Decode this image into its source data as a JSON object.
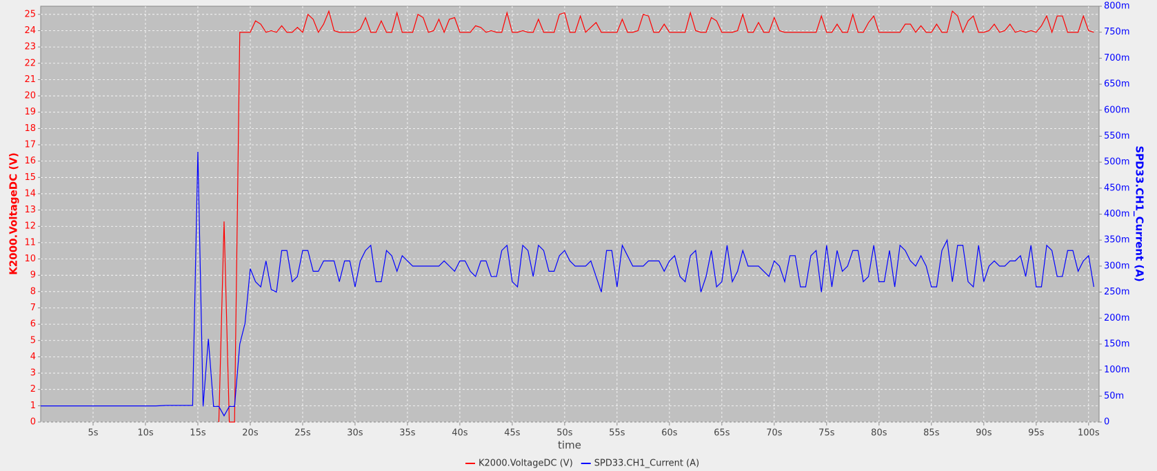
{
  "chart_data": {
    "type": "line",
    "xlabel": "time",
    "ylabel": "K2000.VoltageDC (V)",
    "y2label": "SPD33.CH1_Current (A)",
    "grid": true,
    "legend": "bottom",
    "xlim": [
      0,
      101
    ],
    "ylim": [
      0,
      25.5
    ],
    "y2lim": [
      0,
      0.8
    ],
    "xticks": [
      {
        "value": 5,
        "label": "5s"
      },
      {
        "value": 10,
        "label": "10s"
      },
      {
        "value": 15,
        "label": "15s"
      },
      {
        "value": 20,
        "label": "20s"
      },
      {
        "value": 25,
        "label": "25s"
      },
      {
        "value": 30,
        "label": "30s"
      },
      {
        "value": 35,
        "label": "35s"
      },
      {
        "value": 40,
        "label": "40s"
      },
      {
        "value": 45,
        "label": "45s"
      },
      {
        "value": 50,
        "label": "50s"
      },
      {
        "value": 55,
        "label": "55s"
      },
      {
        "value": 60,
        "label": "60s"
      },
      {
        "value": 65,
        "label": "65s"
      },
      {
        "value": 70,
        "label": "70s"
      },
      {
        "value": 75,
        "label": "75s"
      },
      {
        "value": 80,
        "label": "80s"
      },
      {
        "value": 85,
        "label": "85s"
      },
      {
        "value": 90,
        "label": "90s"
      },
      {
        "value": 95,
        "label": "95s"
      },
      {
        "value": 100,
        "label": "100s"
      }
    ],
    "yticks": [
      0,
      1,
      2,
      3,
      4,
      5,
      6,
      7,
      8,
      9,
      10,
      11,
      12,
      13,
      14,
      15,
      16,
      17,
      18,
      19,
      20,
      21,
      22,
      23,
      24,
      25
    ],
    "y2ticks": [
      0,
      {
        "value": 0.05,
        "label": "50m"
      },
      {
        "value": 0.1,
        "label": "100m"
      },
      {
        "value": 0.15,
        "label": "150m"
      },
      {
        "value": 0.2,
        "label": "200m"
      },
      {
        "value": 0.25,
        "label": "250m"
      },
      {
        "value": 0.3,
        "label": "300m"
      },
      {
        "value": 0.35,
        "label": "350m"
      },
      {
        "value": 0.4,
        "label": "400m"
      },
      {
        "value": 0.45,
        "label": "450m"
      },
      {
        "value": 0.5,
        "label": "500m"
      },
      {
        "value": 0.55,
        "label": "550m"
      },
      {
        "value": 0.6,
        "label": "600m"
      },
      {
        "value": 0.65,
        "label": "650m"
      },
      {
        "value": 0.7,
        "label": "700m"
      },
      {
        "value": 0.75,
        "label": "750m"
      },
      {
        "value": 0.8,
        "label": "800m"
      }
    ],
    "x": [
      0,
      1,
      2,
      3,
      4,
      5,
      6,
      7,
      8,
      9,
      10,
      11,
      12,
      13,
      14,
      14.5,
      15,
      15.5,
      16,
      16.5,
      17,
      17.5,
      18,
      18.5,
      19,
      19.5,
      20,
      20.5,
      21,
      21.5,
      22,
      22.5,
      23,
      23.5,
      24,
      24.5,
      25,
      25.5,
      26,
      26.5,
      27,
      27.5,
      28,
      28.5,
      29,
      29.5,
      30,
      30.5,
      31,
      31.5,
      32,
      32.5,
      33,
      33.5,
      34,
      34.5,
      35,
      35.5,
      36,
      36.5,
      37,
      37.5,
      38,
      38.5,
      39,
      39.5,
      40,
      40.5,
      41,
      41.5,
      42,
      42.5,
      43,
      43.5,
      44,
      44.5,
      45,
      45.5,
      46,
      46.5,
      47,
      47.5,
      48,
      48.5,
      49,
      49.5,
      50,
      50.5,
      51,
      51.5,
      52,
      52.5,
      53,
      53.5,
      54,
      54.5,
      55,
      55.5,
      56,
      56.5,
      57,
      57.5,
      58,
      58.5,
      59,
      59.5,
      60,
      60.5,
      61,
      61.5,
      62,
      62.5,
      63,
      63.5,
      64,
      64.5,
      65,
      65.5,
      66,
      66.5,
      67,
      67.5,
      68,
      68.5,
      69,
      69.5,
      70,
      70.5,
      71,
      71.5,
      72,
      72.5,
      73,
      73.5,
      74,
      74.5,
      75,
      75.5,
      76,
      76.5,
      77,
      77.5,
      78,
      78.5,
      79,
      79.5,
      80,
      80.5,
      81,
      81.5,
      82,
      82.5,
      83,
      83.5,
      84,
      84.5,
      85,
      85.5,
      86,
      86.5,
      87,
      87.5,
      88,
      88.5,
      89,
      89.5,
      90,
      90.5,
      91,
      91.5,
      92,
      92.5,
      93,
      93.5,
      94,
      94.5,
      95,
      95.5,
      96,
      96.5,
      97,
      97.5,
      98,
      98.5,
      99,
      99.5,
      100,
      100.5
    ],
    "series": [
      {
        "name": "K2000.VoltageDC (V)",
        "color": "#ff0000",
        "values": [
          null,
          null,
          null,
          null,
          null,
          null,
          null,
          null,
          null,
          null,
          null,
          null,
          null,
          null,
          null,
          null,
          null,
          null,
          null,
          null,
          0,
          12.3,
          0,
          0,
          23.9,
          23.9,
          23.9,
          24.6,
          24.4,
          23.9,
          24.0,
          23.9,
          24.3,
          23.9,
          23.9,
          24.2,
          23.9,
          25.0,
          24.7,
          23.9,
          24.4,
          25.2,
          24.0,
          23.9,
          23.9,
          23.9,
          23.9,
          24.1,
          24.8,
          23.9,
          23.9,
          24.6,
          23.9,
          23.9,
          25.1,
          23.9,
          23.9,
          23.9,
          25.0,
          24.8,
          23.9,
          24.0,
          24.7,
          23.9,
          24.7,
          24.8,
          23.9,
          23.9,
          23.9,
          24.3,
          24.2,
          23.9,
          24.0,
          23.9,
          23.9,
          25.1,
          23.9,
          23.9,
          24.0,
          23.9,
          23.9,
          24.7,
          23.9,
          23.9,
          23.9,
          25.0,
          25.1,
          23.9,
          23.9,
          24.9,
          23.9,
          24.2,
          24.5,
          23.9,
          23.9,
          23.9,
          23.9,
          24.7,
          23.9,
          23.9,
          24.0,
          25.0,
          24.9,
          23.9,
          23.9,
          24.4,
          23.9,
          23.9,
          23.9,
          23.9,
          25.1,
          24.0,
          23.9,
          23.9,
          24.8,
          24.6,
          23.9,
          23.9,
          23.9,
          24.0,
          25.0,
          23.9,
          23.9,
          24.5,
          23.9,
          23.9,
          24.8,
          24.0,
          23.9,
          23.9,
          23.9,
          23.9,
          23.9,
          23.9,
          23.9,
          24.9,
          23.9,
          23.9,
          24.4,
          23.9,
          23.9,
          25.0,
          23.9,
          23.9,
          24.5,
          24.9,
          23.9,
          23.9,
          23.9,
          23.9,
          23.9,
          24.4,
          24.4,
          23.9,
          24.3,
          23.9,
          23.9,
          24.4,
          23.9,
          23.9,
          25.2,
          24.9,
          23.9,
          24.6,
          24.9,
          23.9,
          23.9,
          24.0,
          24.4,
          23.9,
          24.0,
          24.4,
          23.9,
          24.0,
          23.9,
          24.0,
          23.9,
          24.3,
          24.9,
          23.9,
          24.9,
          24.9,
          23.9,
          23.9,
          23.9,
          24.9,
          24.0,
          23.9
        ]
      },
      {
        "name": "SPD33.CH1_Current (A)",
        "color": "#0000ff",
        "axis": "y2",
        "values": [
          0.031,
          0.031,
          0.031,
          0.031,
          0.031,
          0.031,
          0.031,
          0.031,
          0.031,
          0.031,
          0.031,
          0.031,
          0.032,
          0.032,
          0.032,
          0.032,
          0.52,
          0.03,
          0.16,
          0.03,
          0.03,
          0.012,
          0.03,
          0.03,
          0.15,
          0.19,
          0.295,
          0.27,
          0.26,
          0.31,
          0.255,
          0.25,
          0.33,
          0.33,
          0.27,
          0.28,
          0.33,
          0.33,
          0.29,
          0.29,
          0.31,
          0.31,
          0.31,
          0.27,
          0.31,
          0.31,
          0.26,
          0.31,
          0.33,
          0.34,
          0.27,
          0.27,
          0.33,
          0.32,
          0.29,
          0.32,
          0.31,
          0.3,
          0.3,
          0.3,
          0.3,
          0.3,
          0.3,
          0.31,
          0.3,
          0.29,
          0.31,
          0.31,
          0.29,
          0.28,
          0.31,
          0.31,
          0.28,
          0.28,
          0.33,
          0.34,
          0.27,
          0.26,
          0.34,
          0.33,
          0.28,
          0.34,
          0.33,
          0.29,
          0.29,
          0.32,
          0.33,
          0.31,
          0.3,
          0.3,
          0.3,
          0.31,
          0.28,
          0.25,
          0.33,
          0.33,
          0.26,
          0.34,
          0.32,
          0.3,
          0.3,
          0.3,
          0.31,
          0.31,
          0.31,
          0.29,
          0.31,
          0.32,
          0.28,
          0.27,
          0.32,
          0.33,
          0.25,
          0.28,
          0.33,
          0.26,
          0.27,
          0.34,
          0.27,
          0.29,
          0.33,
          0.3,
          0.3,
          0.3,
          0.29,
          0.28,
          0.31,
          0.3,
          0.27,
          0.32,
          0.32,
          0.26,
          0.26,
          0.32,
          0.33,
          0.25,
          0.34,
          0.26,
          0.33,
          0.29,
          0.3,
          0.33,
          0.33,
          0.27,
          0.28,
          0.34,
          0.27,
          0.27,
          0.33,
          0.26,
          0.34,
          0.33,
          0.31,
          0.3,
          0.32,
          0.3,
          0.26,
          0.26,
          0.33,
          0.35,
          0.27,
          0.34,
          0.34,
          0.27,
          0.26,
          0.34,
          0.27,
          0.3,
          0.31,
          0.3,
          0.3,
          0.31,
          0.31,
          0.32,
          0.28,
          0.34,
          0.26,
          0.26,
          0.34,
          0.33,
          0.28,
          0.28,
          0.33,
          0.33,
          0.29,
          0.31,
          0.32,
          0.26
        ]
      }
    ]
  }
}
